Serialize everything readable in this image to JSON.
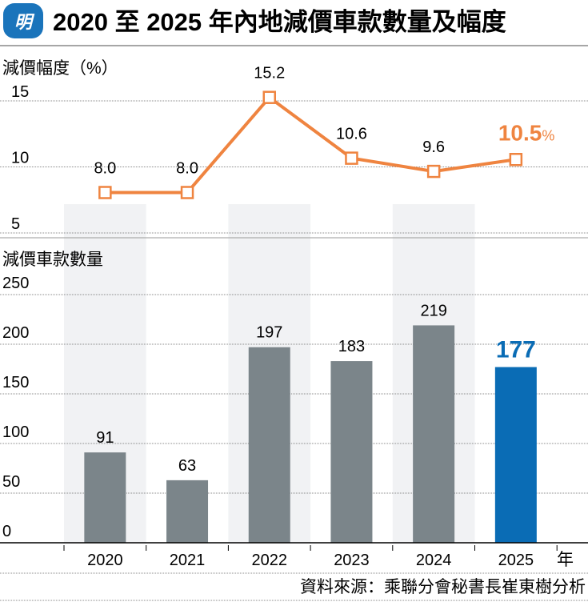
{
  "header": {
    "logo_text": "明",
    "title": "2020 至 2025 年內地減價車款數量及幅度"
  },
  "footer": {
    "source": "資料來源：乘聯分會秘書長崔東樹分析"
  },
  "colors": {
    "line": "#ef8440",
    "bar": "#7b858a",
    "highlight_bar": "#0a6cb5",
    "band": "#f1f2f4",
    "logo": "#1a74bb"
  },
  "chart_data": [
    {
      "type": "line",
      "title": "減價幅度（%）",
      "categories": [
        "2020",
        "2021",
        "2022",
        "2023",
        "2024",
        "2025"
      ],
      "values": [
        8.0,
        8.0,
        15.2,
        10.6,
        9.6,
        10.5
      ],
      "value_labels": [
        "8.0",
        "8.0",
        "15.2",
        "10.6",
        "9.6",
        "10.5"
      ],
      "highlight_suffix": "%",
      "ylim": [
        5,
        15
      ],
      "yticks": [
        "5",
        "10",
        "15"
      ],
      "grid": true
    },
    {
      "type": "bar",
      "title": "減價車款數量",
      "categories": [
        "2020",
        "2021",
        "2022",
        "2023",
        "2024",
        "2025"
      ],
      "values": [
        91,
        63,
        197,
        183,
        219,
        177
      ],
      "value_labels": [
        "91",
        "63",
        "197",
        "183",
        "219",
        "177"
      ],
      "ylim": [
        0,
        250
      ],
      "yticks": [
        "0",
        "50",
        "100",
        "150",
        "200",
        "250"
      ],
      "xlabel": "年",
      "grid": true
    }
  ]
}
